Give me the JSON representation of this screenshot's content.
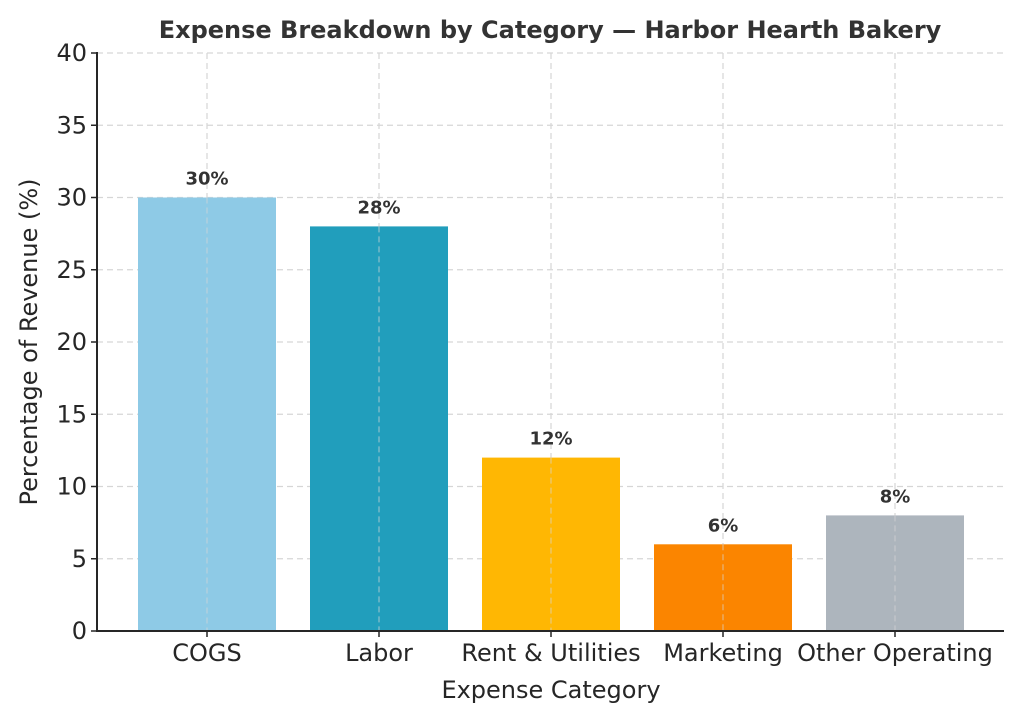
{
  "chart_data": {
    "type": "bar",
    "title": "Expense Breakdown by Category — Harbor Hearth Bakery",
    "xlabel": "Expense Category",
    "ylabel": "Percentage of Revenue (%)",
    "categories": [
      "COGS",
      "Labor",
      "Rent & Utilities",
      "Marketing",
      "Other Operating"
    ],
    "values": [
      30,
      28,
      12,
      6,
      8
    ],
    "value_labels": [
      "30%",
      "28%",
      "12%",
      "6%",
      "8%"
    ],
    "colors": [
      "#8ecae6",
      "#219ebc",
      "#ffb703",
      "#fb8500",
      "#adb5bd"
    ],
    "ylim": [
      0,
      40
    ],
    "yticks": [
      0,
      5,
      10,
      15,
      20,
      25,
      30,
      35,
      40
    ],
    "grid": true,
    "legend": null
  }
}
